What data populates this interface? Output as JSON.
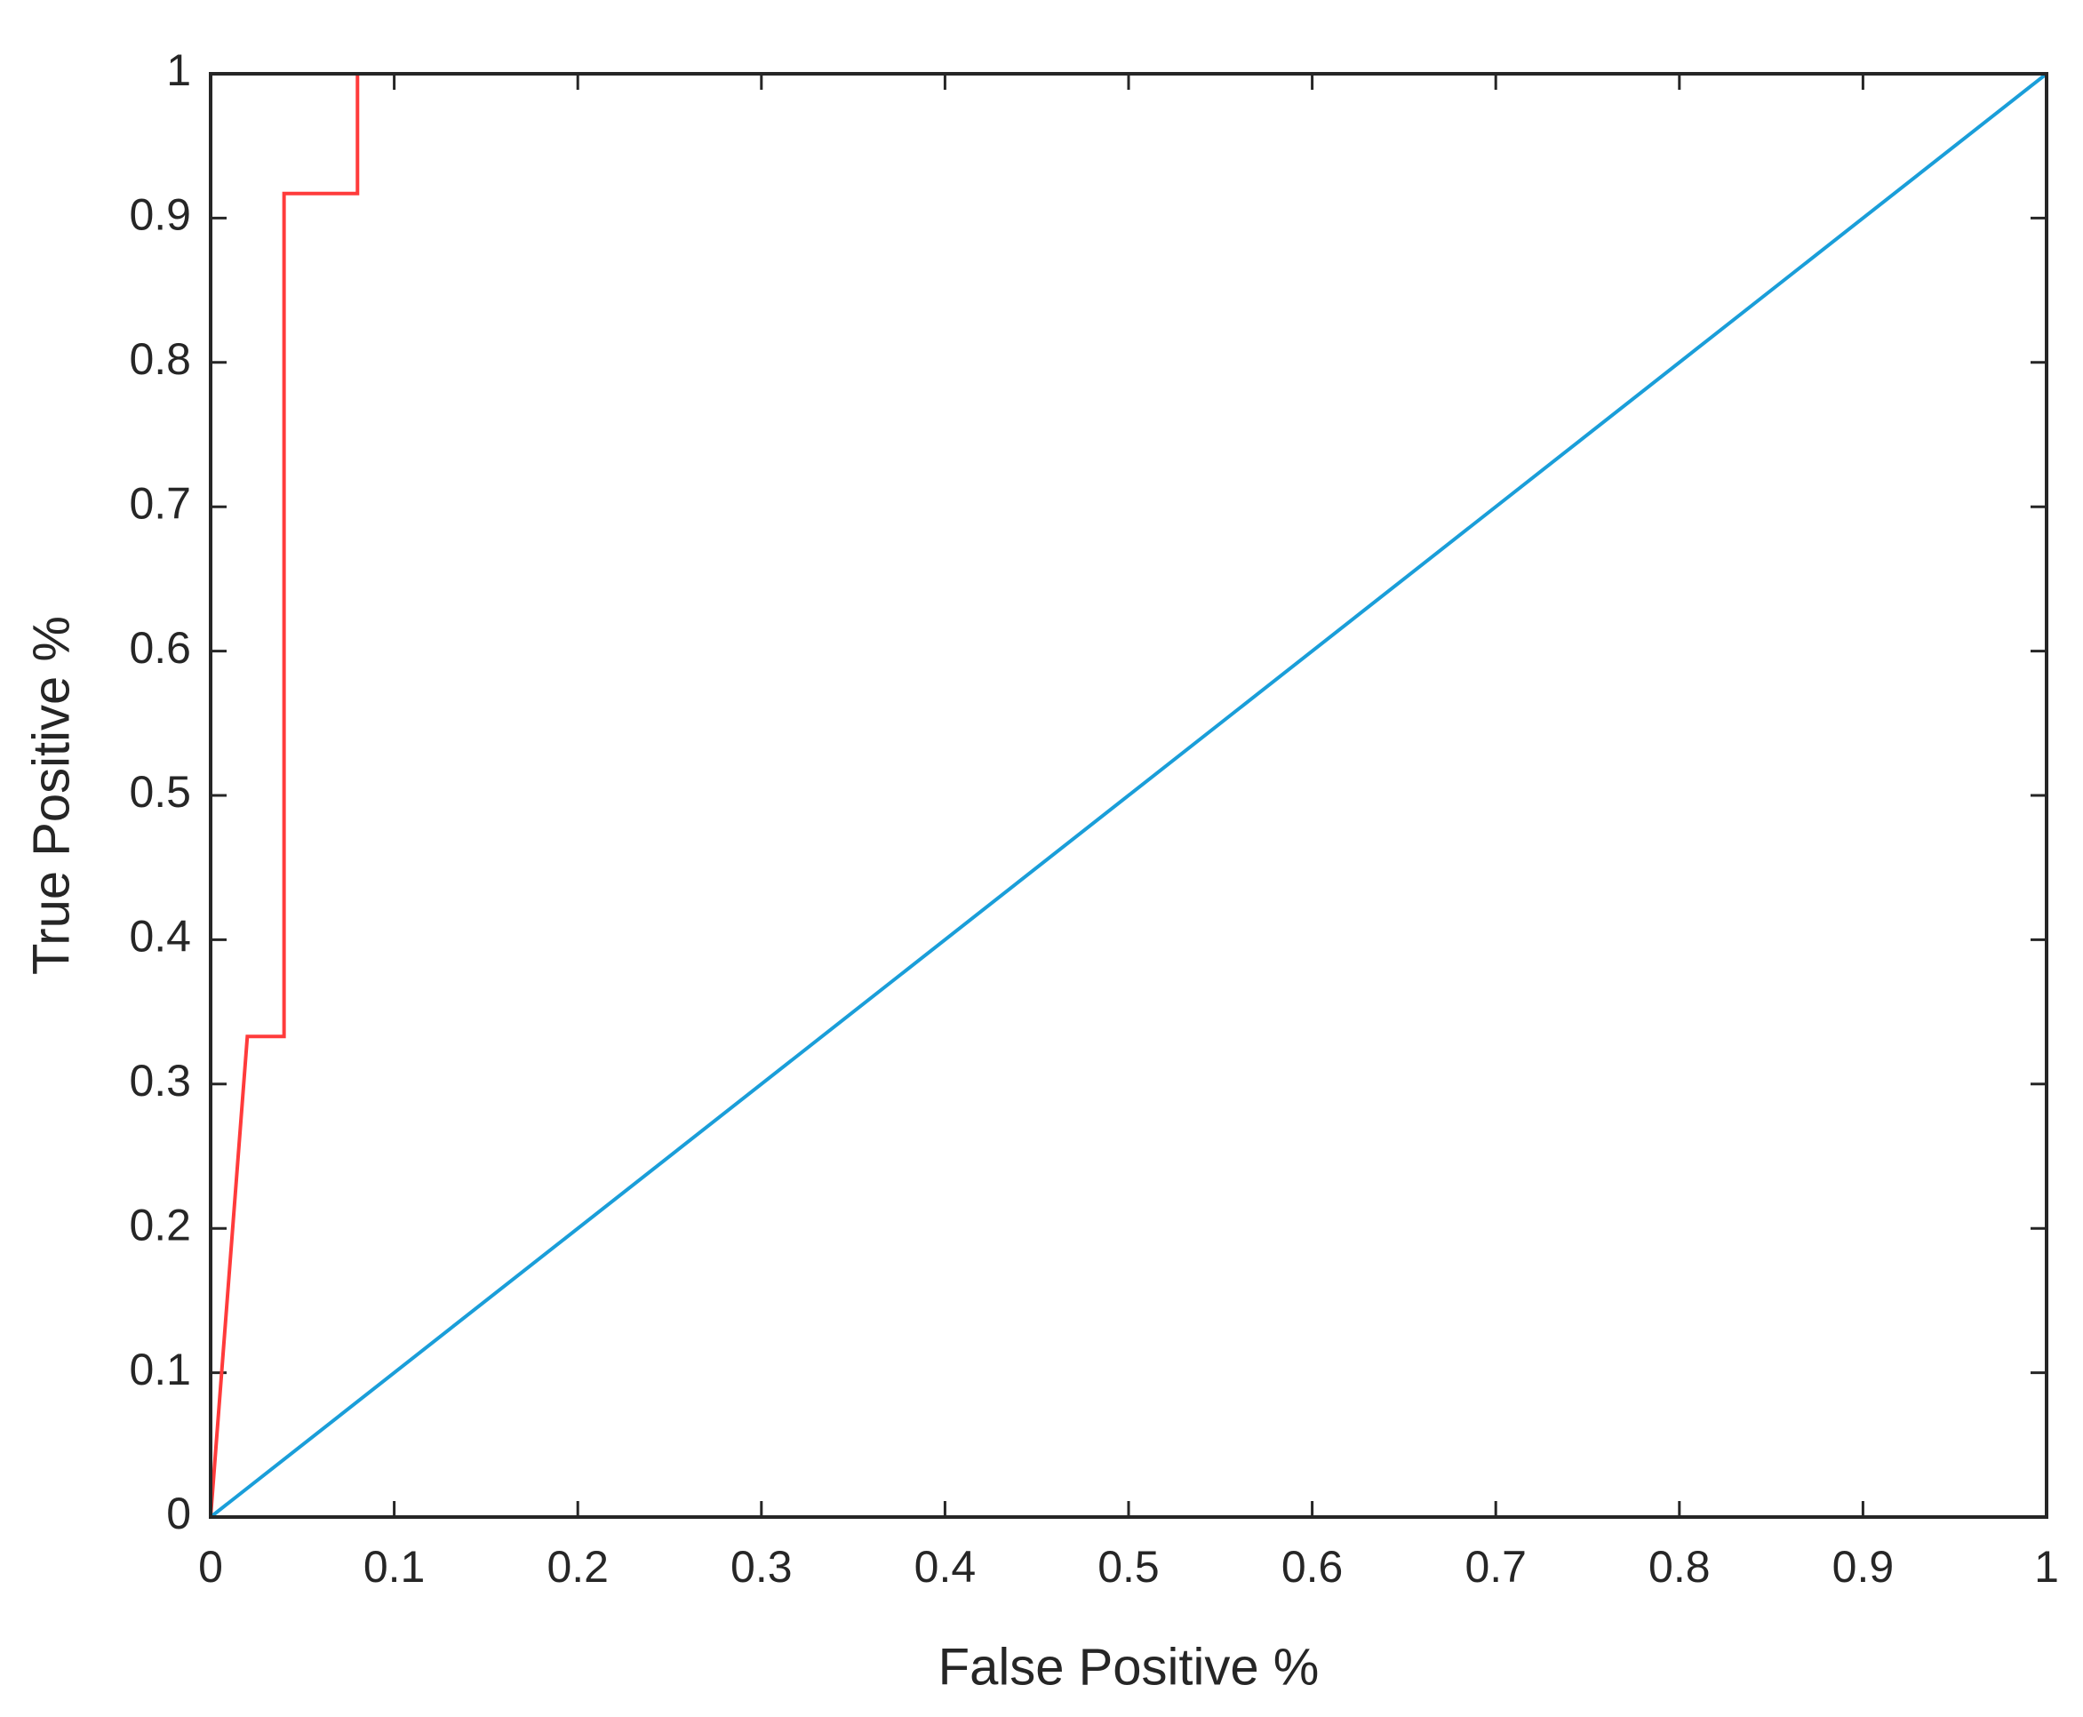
{
  "chart_data": {
    "type": "line",
    "xlabel": "False Positive %",
    "ylabel": "True Positive %",
    "xlim": [
      0,
      1
    ],
    "ylim": [
      0,
      1
    ],
    "xticks": [
      0,
      0.1,
      0.2,
      0.3,
      0.4,
      0.5,
      0.6,
      0.7,
      0.8,
      0.9,
      1
    ],
    "yticks": [
      0,
      0.1,
      0.2,
      0.3,
      0.4,
      0.5,
      0.6,
      0.7,
      0.8,
      0.9,
      1
    ],
    "grid": false,
    "series": [
      {
        "color": "#ff3b3b",
        "x": [
          0,
          0.02,
          0.04,
          0.04,
          0.08,
          0.08,
          1
        ],
        "values": [
          0,
          0.333,
          0.333,
          0.917,
          0.917,
          1,
          1
        ]
      },
      {
        "color": "#1a9ed9",
        "x": [
          0,
          1
        ],
        "values": [
          0,
          1
        ]
      }
    ]
  }
}
